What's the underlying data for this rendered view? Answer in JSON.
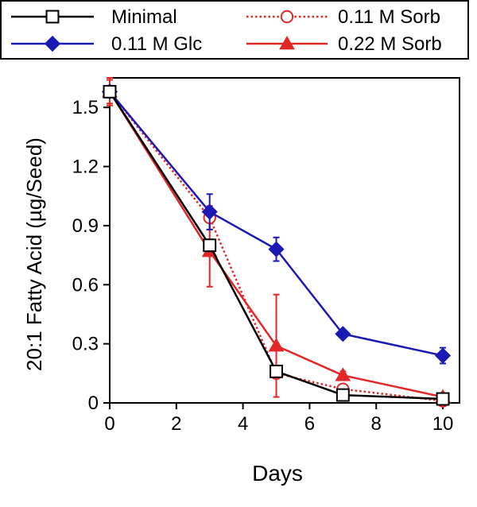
{
  "chart_data": {
    "type": "line",
    "title": "",
    "xlabel": "Days",
    "ylabel": "20:1 Fatty Acid (µg/Seed)",
    "xlim": [
      0,
      10.5
    ],
    "ylim": [
      0,
      1.65
    ],
    "xticks": [
      0,
      2,
      4,
      6,
      8,
      10
    ],
    "xtick_labels": [
      "0",
      "2",
      "4",
      "6",
      "8",
      "10"
    ],
    "yticks": [
      0,
      0.3,
      0.6,
      0.9,
      1.2,
      1.5
    ],
    "ytick_labels": [
      "0",
      "0.3",
      "0.6",
      "0.9",
      "1.2",
      "1.5"
    ],
    "grid": false,
    "legend_position": "top",
    "series": [
      {
        "name": "0.22 M Sorb",
        "color": "#e32626",
        "line_style": "solid",
        "marker": "filled-triangle",
        "x": [
          0,
          3,
          5,
          7,
          10
        ],
        "values": [
          1.58,
          0.77,
          0.29,
          0.14,
          0.03
        ],
        "errors": [
          0.07,
          0.18,
          0.26,
          0.02,
          0.01
        ]
      },
      {
        "name": "0.11 M Sorb",
        "color": "#e32626",
        "line_style": "dotted",
        "marker": "open-circle",
        "x": [
          0,
          3,
          5,
          7,
          10
        ],
        "values": [
          1.58,
          0.94,
          0.15,
          0.07,
          0.01
        ],
        "errors": [
          0.06,
          0.06,
          0.02,
          0.02,
          0.01
        ]
      },
      {
        "name": "0.11 M Glc",
        "color": "#1a1ab3",
        "line_style": "solid",
        "marker": "filled-diamond",
        "x": [
          0,
          3,
          5,
          7,
          10
        ],
        "values": [
          1.58,
          0.97,
          0.78,
          0.35,
          0.24
        ],
        "errors": [
          0.03,
          0.09,
          0.06,
          0.02,
          0.04
        ]
      },
      {
        "name": "Minimal",
        "color": "#000000",
        "line_style": "solid",
        "marker": "open-square",
        "x": [
          0,
          3,
          5,
          7,
          10
        ],
        "values": [
          1.58,
          0.8,
          0.16,
          0.04,
          0.02
        ],
        "errors": [
          0.02,
          0.03,
          0.02,
          0.01,
          0.01
        ]
      }
    ],
    "legend_order": [
      "Minimal",
      "0.11 M Sorb",
      "0.11 M Glc",
      "0.22 M Sorb"
    ]
  }
}
